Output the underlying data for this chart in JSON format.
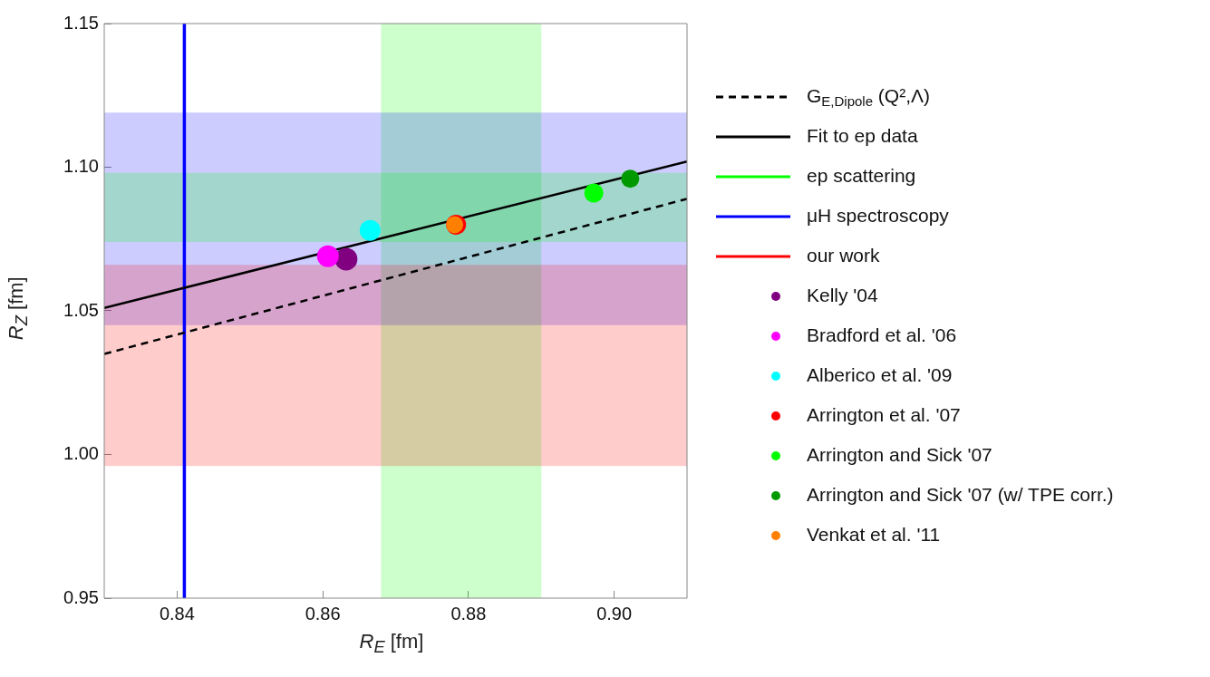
{
  "chart_data": {
    "type": "scatter",
    "xlabel": "R$_{E}$ [fm]",
    "ylabel": "R$_{Z}$ [fm]",
    "xlim": [
      0.83,
      0.91
    ],
    "xticks": [
      0.84,
      0.86,
      0.88,
      {
        "value": 0.9,
        "label": "0.90"
      }
    ],
    "ylim": [
      0.95,
      1.15
    ],
    "yticks": [
      0.95,
      {
        "value": 1,
        "label": "1.00"
      },
      1.05,
      {
        "value": 1.1,
        "label": "1.10"
      },
      1.15
    ],
    "grid": false,
    "legend": "right",
    "series": [
      {
        "type": "line",
        "line_style": "dashed",
        "name": "G$_{E,Dipole}$ (Q²,Λ)",
        "color": "#000000",
        "x": [
          0.83,
          0.91
        ],
        "values": [
          1.035,
          1.089
        ]
      },
      {
        "type": "line",
        "line_style": "solid",
        "name": "Fit to ep data",
        "color": "#000000",
        "x": [
          0.83,
          0.91
        ],
        "values": [
          1.051,
          1.102
        ]
      },
      {
        "type": "line",
        "name": "ep scattering",
        "color": "#00ff00",
        "x": [
          0.83,
          0.91
        ],
        "values": [
          null,
          null
        ],
        "lower": [
          1.074,
          1.074
        ],
        "upper": [
          1.098,
          1.098
        ]
      },
      {
        "type": "line",
        "line_style": "solid",
        "name": "μH spectroscopy",
        "color": "#0000ff",
        "x": [
          0.841,
          0.841
        ],
        "values": [
          0.95,
          1.15
        ]
      },
      {
        "type": "line",
        "name": "our work",
        "color": "#ff0000",
        "x": [
          0.83,
          0.91
        ],
        "values": [
          null,
          null
        ],
        "lower": [
          0.996,
          0.996
        ],
        "upper": [
          1.066,
          1.066
        ]
      },
      {
        "name": "Kelly '04",
        "color": "#800080",
        "x": [
          0.8632
        ],
        "values": [
          1.068
        ]
      },
      {
        "name": "Bradford et al. '06",
        "color": "#ff00ff",
        "x": [
          0.8607
        ],
        "values": [
          1.069
        ]
      },
      {
        "name": "Alberico et al. '09",
        "color": "#00ffff",
        "x": [
          0.8665
        ],
        "values": [
          1.078
        ]
      },
      {
        "name": "Arrington et al. '07",
        "color": "#ff0000",
        "x": [
          0.8783
        ],
        "values": [
          1.08
        ]
      },
      {
        "name": "Arrington and Sick '07",
        "color": "#00ff00",
        "x": [
          0.8972
        ],
        "values": [
          1.091
        ]
      },
      {
        "name": "Arrington and Sick '07 (w/ TPE corr.)",
        "color": "#009900",
        "x": [
          0.9022
        ],
        "values": [
          1.096
        ]
      },
      {
        "name": "Venkat et al. '11",
        "color": "#ff8000",
        "x": [
          0.8781
        ],
        "values": [
          1.08
        ]
      }
    ],
    "bands": [
      {
        "axis": "x",
        "from": 0.868,
        "to": 0.89,
        "color": "#00ff00"
      },
      {
        "axis": "y",
        "from": 1.045,
        "to": 1.119,
        "color": "#0000ff"
      }
    ]
  }
}
